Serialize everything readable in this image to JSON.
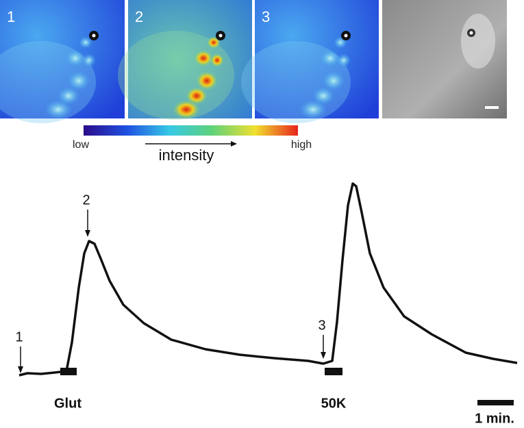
{
  "panels": {
    "labels": [
      "1",
      "2",
      "3"
    ]
  },
  "colorbar": {
    "low": "low",
    "high": "high",
    "label": "intensity"
  },
  "trace": {
    "markers": [
      "1",
      "2",
      "3"
    ],
    "stimuli": [
      "Glut",
      "50K"
    ],
    "scale_bar": "1 min."
  }
}
